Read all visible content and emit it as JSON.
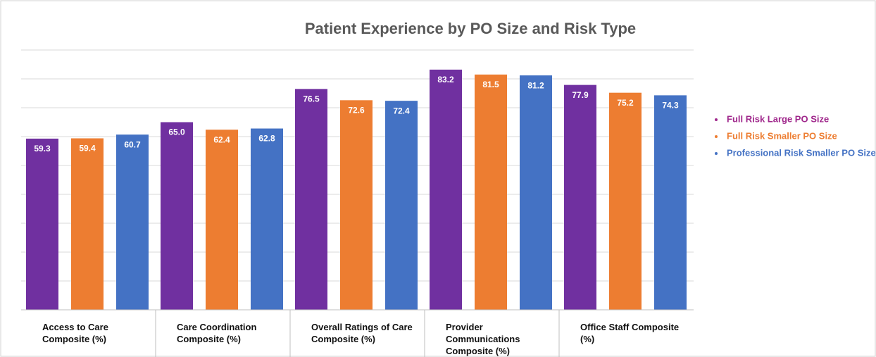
{
  "chart_data": {
    "type": "bar",
    "title": "Patient Experience by PO Size and Risk Type",
    "categories": [
      "Access to Care Composite (%)",
      "Care Coordination Composite (%)",
      "Overall Ratings of Care Composite (%)",
      "Provider Communications Composite (%)",
      "Office Staff Composite (%)"
    ],
    "series": [
      {
        "name": "Full Risk Large PO Size",
        "color": "#7030a0",
        "legend_color": "#a0288c",
        "values": [
          59.3,
          65.0,
          76.5,
          83.2,
          77.9
        ],
        "value_labels": [
          "59.3",
          "65.0",
          "76.5",
          "83.2",
          "77.9"
        ]
      },
      {
        "name": "Full Risk Smaller PO Size",
        "color": "#ed7d31",
        "legend_color": "#ed7d31",
        "values": [
          59.4,
          62.4,
          72.6,
          81.5,
          75.2
        ],
        "value_labels": [
          "59.4",
          "62.4",
          "72.6",
          "81.5",
          "75.2"
        ]
      },
      {
        "name": "Professional Risk Smaller PO Size",
        "color": "#4472c4",
        "legend_color": "#4472c4",
        "values": [
          60.7,
          62.8,
          72.4,
          81.2,
          74.3
        ],
        "value_labels": [
          "60.7",
          "62.8",
          "72.4",
          "81.2",
          "74.3"
        ]
      }
    ],
    "ylim": [
      0,
      90
    ],
    "yticks": [
      0,
      10,
      20,
      30,
      40,
      50,
      60,
      70,
      80,
      90
    ],
    "grid": true,
    "legend": "right"
  }
}
